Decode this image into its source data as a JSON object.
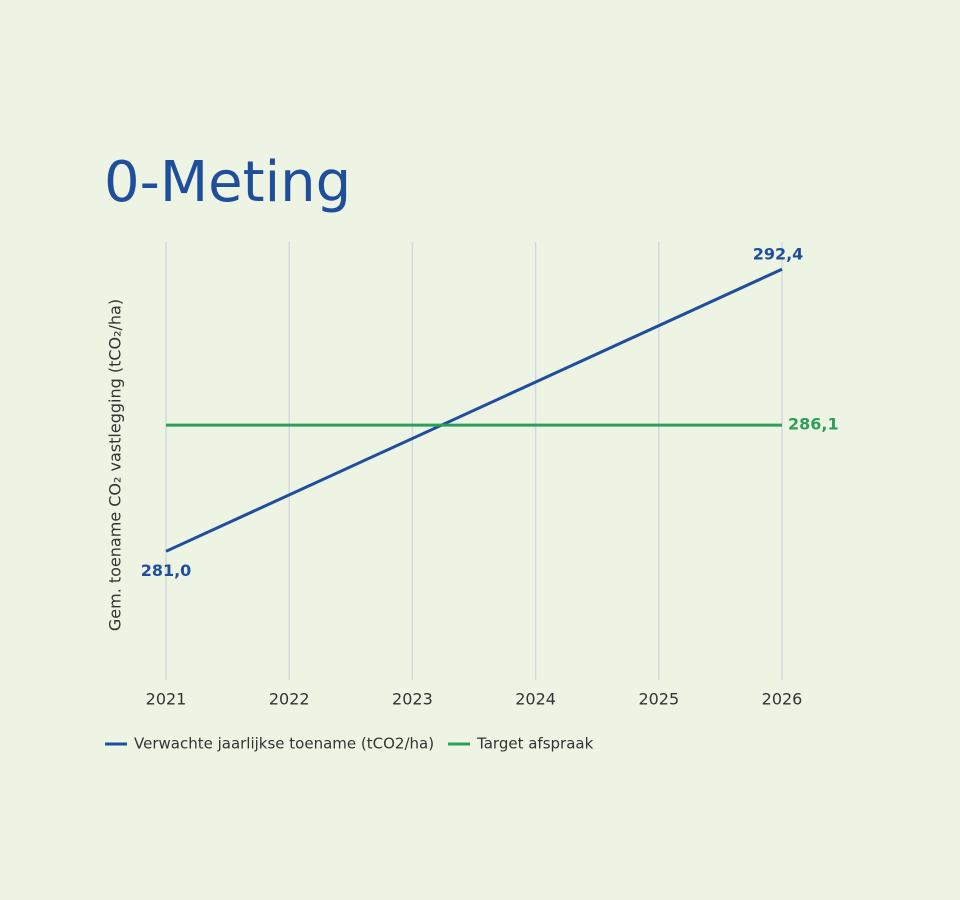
{
  "chart_data": {
    "type": "line",
    "title": "0-Meting",
    "y_label": "Gem. toename CO₂ vastlegging  (tCO₂/ha)",
    "x": [
      2021,
      2026
    ],
    "xlim": [
      2021,
      2026
    ],
    "xticks": [
      2021,
      2022,
      2023,
      2024,
      2025,
      2026
    ],
    "ylim": [
      275.8,
      293.5
    ],
    "grid": true,
    "series": [
      {
        "name": "Verwachte jaarlijkse toename (tCO2/ha)",
        "color": "#1f4e9c",
        "values": [
          281.0,
          292.4
        ],
        "value_labels": [
          "281,0",
          "292,4"
        ]
      },
      {
        "name": "Target afspraak",
        "color": "#2e9e5b",
        "values": [
          286.1,
          286.1
        ],
        "value_labels": [
          null,
          "286,1"
        ]
      }
    ]
  }
}
